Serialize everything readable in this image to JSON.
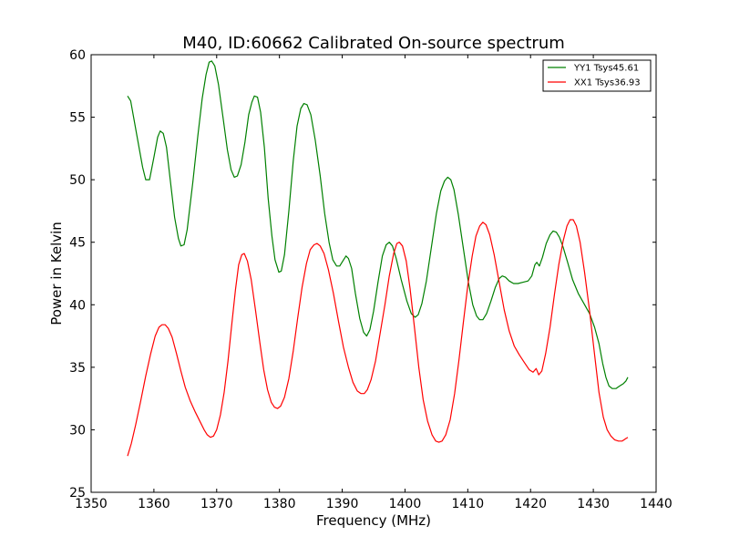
{
  "chart_data": {
    "type": "line",
    "title": "M40, ID:60662 Calibrated On-source spectrum",
    "xlabel": "Frequency (MHz)",
    "ylabel": "Power in Kelvin",
    "xlim": [
      1350,
      1440
    ],
    "ylim": [
      25,
      60
    ],
    "xticks": [
      1350,
      1360,
      1370,
      1380,
      1390,
      1400,
      1410,
      1420,
      1430,
      1440
    ],
    "yticks": [
      25,
      30,
      35,
      40,
      45,
      50,
      55,
      60
    ],
    "grid": false,
    "legend_position": "top-right",
    "series": [
      {
        "name": "YY1 Tsys45.61",
        "color": "#008000",
        "points": [
          [
            1355.8,
            56.7
          ],
          [
            1356.3,
            56.3
          ],
          [
            1357.3,
            53.5
          ],
          [
            1358.2,
            51.0
          ],
          [
            1358.7,
            50.0
          ],
          [
            1359.3,
            50.0
          ],
          [
            1360.0,
            51.8
          ],
          [
            1360.6,
            53.4
          ],
          [
            1361.0,
            53.9
          ],
          [
            1361.5,
            53.7
          ],
          [
            1362.0,
            52.6
          ],
          [
            1362.6,
            50.0
          ],
          [
            1363.3,
            47.0
          ],
          [
            1363.9,
            45.3
          ],
          [
            1364.3,
            44.7
          ],
          [
            1364.8,
            44.8
          ],
          [
            1365.3,
            46.0
          ],
          [
            1366.2,
            49.8
          ],
          [
            1367.0,
            53.5
          ],
          [
            1367.7,
            56.5
          ],
          [
            1368.3,
            58.4
          ],
          [
            1368.8,
            59.4
          ],
          [
            1369.2,
            59.5
          ],
          [
            1369.7,
            59.1
          ],
          [
            1370.3,
            57.6
          ],
          [
            1371.0,
            55.0
          ],
          [
            1371.7,
            52.4
          ],
          [
            1372.3,
            50.8
          ],
          [
            1372.8,
            50.2
          ],
          [
            1373.3,
            50.3
          ],
          [
            1373.9,
            51.2
          ],
          [
            1374.5,
            53.0
          ],
          [
            1375.1,
            55.2
          ],
          [
            1375.6,
            56.2
          ],
          [
            1376.0,
            56.7
          ],
          [
            1376.5,
            56.6
          ],
          [
            1377.0,
            55.4
          ],
          [
            1377.6,
            52.6
          ],
          [
            1378.2,
            48.5
          ],
          [
            1378.8,
            45.5
          ],
          [
            1379.3,
            43.6
          ],
          [
            1379.9,
            42.6
          ],
          [
            1380.3,
            42.7
          ],
          [
            1380.8,
            44.0
          ],
          [
            1381.5,
            47.5
          ],
          [
            1382.2,
            51.5
          ],
          [
            1382.8,
            54.3
          ],
          [
            1383.4,
            55.7
          ],
          [
            1383.9,
            56.1
          ],
          [
            1384.4,
            56.0
          ],
          [
            1385.0,
            55.2
          ],
          [
            1385.7,
            53.2
          ],
          [
            1386.5,
            50.3
          ],
          [
            1387.2,
            47.3
          ],
          [
            1387.9,
            45.0
          ],
          [
            1388.5,
            43.6
          ],
          [
            1389.1,
            43.1
          ],
          [
            1389.6,
            43.1
          ],
          [
            1390.1,
            43.5
          ],
          [
            1390.6,
            43.9
          ],
          [
            1391.0,
            43.7
          ],
          [
            1391.5,
            42.9
          ],
          [
            1392.1,
            40.9
          ],
          [
            1392.8,
            38.9
          ],
          [
            1393.4,
            37.8
          ],
          [
            1393.9,
            37.5
          ],
          [
            1394.4,
            38.0
          ],
          [
            1395.0,
            39.5
          ],
          [
            1395.7,
            41.8
          ],
          [
            1396.4,
            43.9
          ],
          [
            1397.0,
            44.8
          ],
          [
            1397.5,
            45.0
          ],
          [
            1398.0,
            44.7
          ],
          [
            1398.6,
            43.7
          ],
          [
            1399.4,
            42.0
          ],
          [
            1400.3,
            40.3
          ],
          [
            1401.0,
            39.3
          ],
          [
            1401.6,
            39.0
          ],
          [
            1402.1,
            39.2
          ],
          [
            1402.7,
            40.1
          ],
          [
            1403.4,
            41.9
          ],
          [
            1404.2,
            44.6
          ],
          [
            1405.0,
            47.3
          ],
          [
            1405.7,
            49.1
          ],
          [
            1406.3,
            49.9
          ],
          [
            1406.8,
            50.2
          ],
          [
            1407.3,
            50.0
          ],
          [
            1407.8,
            49.2
          ],
          [
            1408.5,
            47.2
          ],
          [
            1409.3,
            44.5
          ],
          [
            1410.1,
            41.8
          ],
          [
            1410.8,
            40.0
          ],
          [
            1411.4,
            39.1
          ],
          [
            1411.9,
            38.8
          ],
          [
            1412.4,
            38.8
          ],
          [
            1413.0,
            39.3
          ],
          [
            1413.7,
            40.3
          ],
          [
            1414.4,
            41.4
          ],
          [
            1415.0,
            42.1
          ],
          [
            1415.5,
            42.3
          ],
          [
            1416.0,
            42.2
          ],
          [
            1416.6,
            41.9
          ],
          [
            1417.3,
            41.7
          ],
          [
            1418.0,
            41.7
          ],
          [
            1418.8,
            41.8
          ],
          [
            1419.6,
            41.9
          ],
          [
            1420.2,
            42.3
          ],
          [
            1420.7,
            43.2
          ],
          [
            1421.0,
            43.4
          ],
          [
            1421.4,
            43.1
          ],
          [
            1421.9,
            43.8
          ],
          [
            1422.5,
            44.9
          ],
          [
            1423.1,
            45.6
          ],
          [
            1423.6,
            45.9
          ],
          [
            1424.1,
            45.8
          ],
          [
            1424.6,
            45.4
          ],
          [
            1425.2,
            44.6
          ],
          [
            1425.9,
            43.4
          ],
          [
            1426.7,
            42.0
          ],
          [
            1427.6,
            40.9
          ],
          [
            1428.5,
            40.1
          ],
          [
            1429.4,
            39.3
          ],
          [
            1430.2,
            38.2
          ],
          [
            1430.9,
            36.9
          ],
          [
            1431.5,
            35.3
          ],
          [
            1432.0,
            34.2
          ],
          [
            1432.5,
            33.5
          ],
          [
            1433.0,
            33.3
          ],
          [
            1433.6,
            33.3
          ],
          [
            1434.2,
            33.5
          ],
          [
            1434.8,
            33.7
          ],
          [
            1435.2,
            33.9
          ],
          [
            1435.5,
            34.2
          ]
        ]
      },
      {
        "name": "XX1 Tsys36.93",
        "color": "#ff0000",
        "points": [
          [
            1355.8,
            27.9
          ],
          [
            1356.4,
            28.9
          ],
          [
            1357.1,
            30.4
          ],
          [
            1357.9,
            32.3
          ],
          [
            1358.7,
            34.3
          ],
          [
            1359.5,
            36.1
          ],
          [
            1360.2,
            37.5
          ],
          [
            1360.8,
            38.2
          ],
          [
            1361.3,
            38.4
          ],
          [
            1361.8,
            38.4
          ],
          [
            1362.3,
            38.1
          ],
          [
            1362.9,
            37.4
          ],
          [
            1363.6,
            36.1
          ],
          [
            1364.3,
            34.7
          ],
          [
            1365.0,
            33.4
          ],
          [
            1365.8,
            32.3
          ],
          [
            1366.6,
            31.4
          ],
          [
            1367.4,
            30.6
          ],
          [
            1368.0,
            30.0
          ],
          [
            1368.5,
            29.6
          ],
          [
            1369.0,
            29.4
          ],
          [
            1369.5,
            29.5
          ],
          [
            1370.0,
            30.0
          ],
          [
            1370.6,
            31.2
          ],
          [
            1371.2,
            33.0
          ],
          [
            1371.8,
            35.5
          ],
          [
            1372.4,
            38.4
          ],
          [
            1373.0,
            41.2
          ],
          [
            1373.5,
            43.2
          ],
          [
            1374.0,
            44.0
          ],
          [
            1374.4,
            44.1
          ],
          [
            1374.9,
            43.5
          ],
          [
            1375.5,
            42.0
          ],
          [
            1376.2,
            39.5
          ],
          [
            1376.9,
            36.9
          ],
          [
            1377.5,
            34.8
          ],
          [
            1378.1,
            33.2
          ],
          [
            1378.7,
            32.2
          ],
          [
            1379.2,
            31.8
          ],
          [
            1379.7,
            31.7
          ],
          [
            1380.2,
            31.9
          ],
          [
            1380.8,
            32.6
          ],
          [
            1381.5,
            34.1
          ],
          [
            1382.2,
            36.3
          ],
          [
            1382.9,
            38.9
          ],
          [
            1383.6,
            41.4
          ],
          [
            1384.3,
            43.3
          ],
          [
            1384.9,
            44.4
          ],
          [
            1385.5,
            44.8
          ],
          [
            1386.0,
            44.9
          ],
          [
            1386.5,
            44.7
          ],
          [
            1387.1,
            44.1
          ],
          [
            1387.8,
            42.8
          ],
          [
            1388.6,
            40.9
          ],
          [
            1389.4,
            38.7
          ],
          [
            1390.2,
            36.6
          ],
          [
            1391.0,
            35.0
          ],
          [
            1391.7,
            33.8
          ],
          [
            1392.4,
            33.1
          ],
          [
            1393.0,
            32.9
          ],
          [
            1393.5,
            32.9
          ],
          [
            1394.0,
            33.2
          ],
          [
            1394.6,
            34.0
          ],
          [
            1395.3,
            35.5
          ],
          [
            1396.0,
            37.6
          ],
          [
            1396.8,
            40.0
          ],
          [
            1397.5,
            42.3
          ],
          [
            1398.2,
            44.1
          ],
          [
            1398.7,
            44.9
          ],
          [
            1399.1,
            45.0
          ],
          [
            1399.6,
            44.7
          ],
          [
            1400.2,
            43.5
          ],
          [
            1400.8,
            41.3
          ],
          [
            1401.5,
            38.2
          ],
          [
            1402.2,
            35.0
          ],
          [
            1402.9,
            32.4
          ],
          [
            1403.6,
            30.7
          ],
          [
            1404.3,
            29.6
          ],
          [
            1404.9,
            29.1
          ],
          [
            1405.4,
            29.0
          ],
          [
            1405.9,
            29.1
          ],
          [
            1406.5,
            29.6
          ],
          [
            1407.2,
            30.8
          ],
          [
            1407.9,
            32.9
          ],
          [
            1408.6,
            35.6
          ],
          [
            1409.3,
            38.6
          ],
          [
            1410.0,
            41.5
          ],
          [
            1410.7,
            43.9
          ],
          [
            1411.3,
            45.5
          ],
          [
            1411.9,
            46.3
          ],
          [
            1412.4,
            46.6
          ],
          [
            1412.9,
            46.4
          ],
          [
            1413.5,
            45.6
          ],
          [
            1414.2,
            44.0
          ],
          [
            1415.0,
            41.8
          ],
          [
            1415.8,
            39.6
          ],
          [
            1416.6,
            37.9
          ],
          [
            1417.4,
            36.7
          ],
          [
            1418.2,
            36.0
          ],
          [
            1419.0,
            35.4
          ],
          [
            1419.8,
            34.8
          ],
          [
            1420.4,
            34.6
          ],
          [
            1420.9,
            34.9
          ],
          [
            1421.3,
            34.4
          ],
          [
            1421.8,
            34.7
          ],
          [
            1422.4,
            36.1
          ],
          [
            1423.1,
            38.2
          ],
          [
            1423.8,
            40.8
          ],
          [
            1424.5,
            43.2
          ],
          [
            1425.2,
            45.1
          ],
          [
            1425.8,
            46.3
          ],
          [
            1426.3,
            46.8
          ],
          [
            1426.8,
            46.8
          ],
          [
            1427.3,
            46.3
          ],
          [
            1427.9,
            45.0
          ],
          [
            1428.6,
            42.6
          ],
          [
            1429.4,
            39.5
          ],
          [
            1430.2,
            36.0
          ],
          [
            1430.9,
            33.0
          ],
          [
            1431.6,
            31.0
          ],
          [
            1432.2,
            30.0
          ],
          [
            1432.8,
            29.5
          ],
          [
            1433.4,
            29.2
          ],
          [
            1434.0,
            29.1
          ],
          [
            1434.6,
            29.1
          ],
          [
            1435.2,
            29.3
          ],
          [
            1435.5,
            29.4
          ]
        ]
      }
    ]
  }
}
